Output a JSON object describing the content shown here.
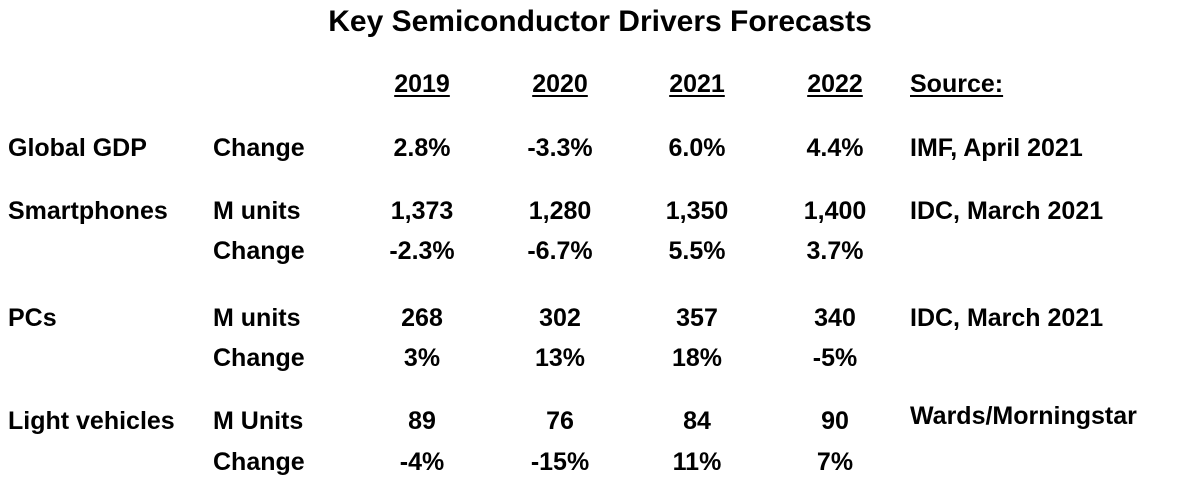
{
  "title": "Key Semiconductor Drivers Forecasts",
  "header": {
    "years": [
      "2019",
      "2020",
      "2021",
      "2022"
    ],
    "source_label": "Source:"
  },
  "rows": [
    {
      "label": "Global GDP",
      "metric": "Change",
      "values": [
        "2.8%",
        "-3.3%",
        "6.0%",
        "4.4%"
      ],
      "source": "IMF, April 2021"
    },
    {
      "label": "Smartphones",
      "metric": "M units",
      "values": [
        "1,373",
        "1,280",
        "1,350",
        "1,400"
      ],
      "source": "IDC, March 2021"
    },
    {
      "label": "",
      "metric": "Change",
      "values": [
        "-2.3%",
        "-6.7%",
        "5.5%",
        "3.7%"
      ],
      "source": ""
    },
    {
      "label": "PCs",
      "metric": "M units",
      "values": [
        "268",
        "302",
        "357",
        "340"
      ],
      "source": "IDC, March 2021"
    },
    {
      "label": "",
      "metric": "Change",
      "values": [
        "3%",
        "13%",
        "18%",
        "-5%"
      ],
      "source": ""
    },
    {
      "label": "Light vehicles",
      "metric": "M Units",
      "values": [
        "89",
        "76",
        "84",
        "90"
      ],
      "source": "Wards/Morningstar"
    },
    {
      "label": "",
      "metric": "Change",
      "values": [
        "-4%",
        "-15%",
        "11%",
        "7%"
      ],
      "source": ""
    }
  ]
}
